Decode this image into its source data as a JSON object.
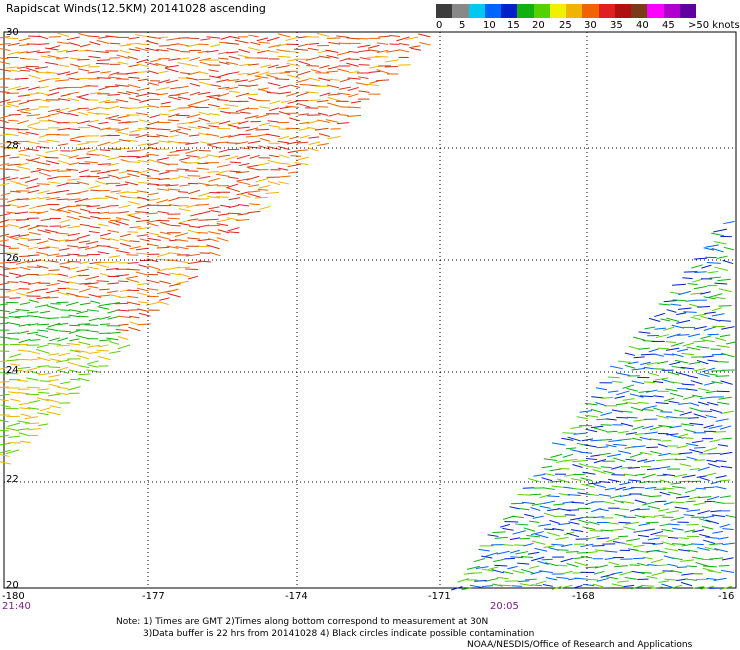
{
  "title": "Rapidscat Winds(12.5KM) 20141028 ascending",
  "legend": {
    "colors": [
      "#3c3c3c",
      "#888888",
      "#00c8f0",
      "#0064ff",
      "#0020c8",
      "#10b010",
      "#55d000",
      "#f0f000",
      "#f0b400",
      "#f06400",
      "#e02020",
      "#b01010",
      "#7a3a1a",
      "#ff00ff",
      "#b000d0",
      "#6000a0"
    ],
    "labels": [
      "0",
      "5",
      "10",
      "15",
      "20",
      "25",
      "30",
      "35",
      "40",
      "45",
      ">50 knots"
    ]
  },
  "axes": {
    "lat_labels": [
      "30",
      "28",
      "26",
      "24",
      "22",
      "20"
    ],
    "lon_labels": [
      "-180",
      "-177",
      "-174",
      "-171",
      "-168",
      "-16"
    ],
    "times": [
      "21:40",
      "20:05"
    ]
  },
  "notes": [
    "Note: 1) Times are GMT 2)Times along bottom correspond to measurement at 30N",
    "3)Data buffer is 22 hrs from 20141028 4) Black circles indicate possible contamination"
  ],
  "credit": "NOAA/NESDIS/Office of Research and Applications",
  "wind_colors": {
    "north_swath": [
      "#e02020",
      "#f06400",
      "#f0b400",
      "#d04010"
    ],
    "south_swath": [
      "#0020c8",
      "#10b010",
      "#0064ff",
      "#55d000"
    ]
  }
}
